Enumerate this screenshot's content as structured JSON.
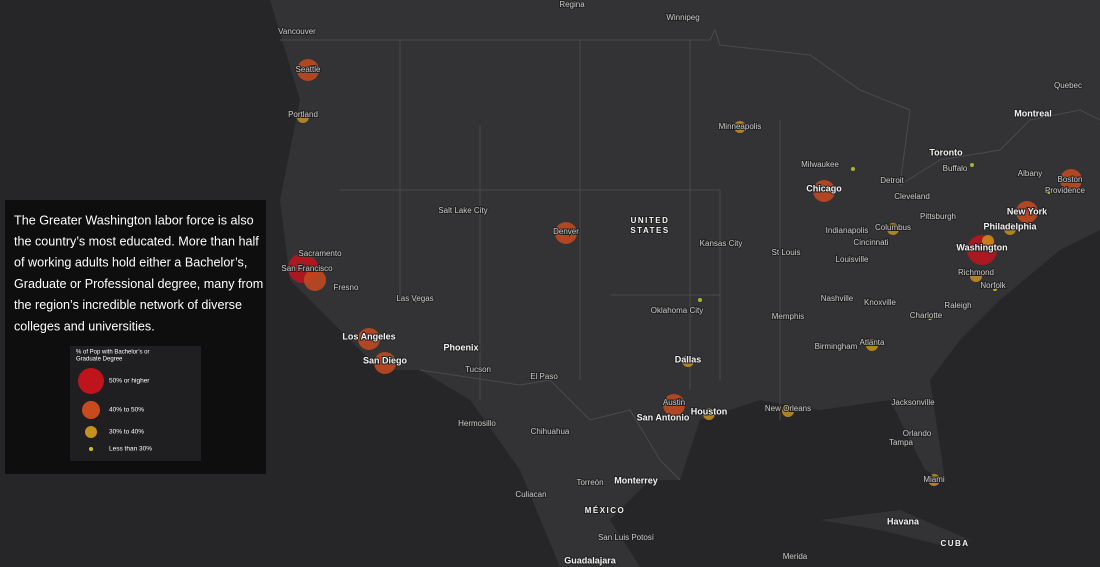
{
  "panel": {
    "lines": [
      "The Greater Washington labor force is also",
      "the country’s most educated. More than half",
      "of working adults hold either a Bachelor’s,",
      "Graduate or Professional degree, many from",
      "the region’s incredible network of diverse",
      "colleges and universities."
    ],
    "legend": {
      "title_lines": [
        "% of Pop with Bachelor’s or",
        "Graduate Degree"
      ],
      "items": [
        "50% or higher",
        "40% to 50%",
        "30% to 40%",
        "Less than 30%"
      ]
    }
  },
  "labels": [
    "Regina",
    "Winnipeg",
    "Vancouver",
    "Seattle",
    "Portland",
    "Minneapolis",
    "Quebec",
    "Montreal",
    "Toronto",
    "Buffalo",
    "Milwaukee",
    "Detroit",
    "Albany",
    "Boston",
    "Providence",
    "Chicago",
    "Cleveland",
    "Salt Lake City",
    "UNITED",
    "STATES",
    "Denver",
    "Columbus",
    "Pittsburgh",
    "New York",
    "Philadelphia",
    "Indianapolis",
    "Kansas City",
    "Cincinnati",
    "Washington",
    "Sacramento",
    "St Louis",
    "Louisville",
    "San Francisco",
    "Richmond",
    "Fresno",
    "Norfolk",
    "Las Vegas",
    "Nashville",
    "Knoxville",
    "Raleigh",
    "Oklahoma City",
    "Charlotte",
    "Memphis",
    "Los Angeles",
    "Phoenix",
    "Birmingham",
    "Atlanta",
    "Dallas",
    "San Diego",
    "Tucson",
    "El Paso",
    "Jacksonville",
    "Austin",
    "New Orleans",
    "Houston",
    "San Antonio",
    "Hermosillo",
    "Chihuahua",
    "Orlando",
    "Tampa",
    "Miami",
    "Torreón",
    "Monterrey",
    "Culiacan",
    "MÉXICO",
    "Havana",
    "San Luis Potosí",
    "CUBA",
    "Guadalajara",
    "Merida"
  ]
}
